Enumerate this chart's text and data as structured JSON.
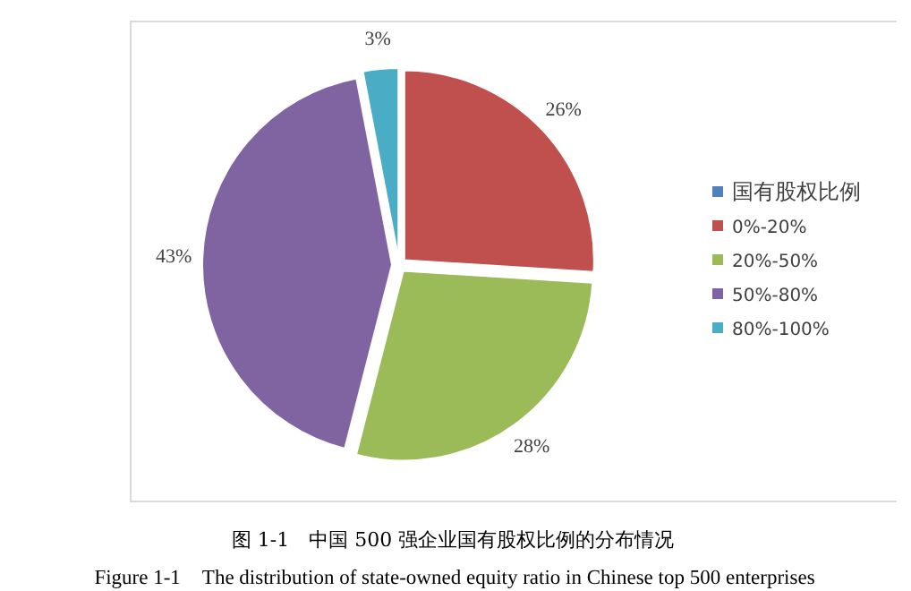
{
  "chart_data": {
    "type": "pie",
    "title": "图 1-1　中国 500 强企业国有股权比例的分布情况",
    "subtitle": "Figure 1-1　The distribution of state-owned equity ratio in Chinese top 500 enterprises",
    "legend_title": "国有股权比例",
    "categories": [
      "0%-20%",
      "20%-50%",
      "50%-80%",
      "80%-100%"
    ],
    "values": [
      26,
      28,
      43,
      3
    ],
    "value_labels": [
      "26%",
      "28%",
      "43%",
      "3%"
    ],
    "colors": [
      "#c0504d",
      "#9bbb59",
      "#8064a2",
      "#4bacc6"
    ],
    "legend": "right"
  }
}
